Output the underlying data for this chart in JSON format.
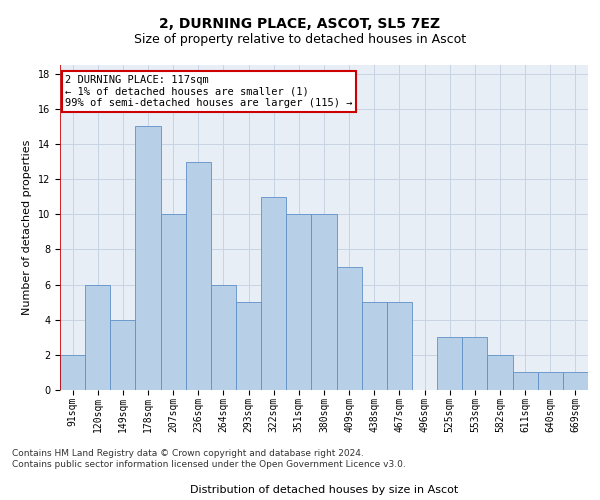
{
  "title": "2, DURNING PLACE, ASCOT, SL5 7EZ",
  "subtitle": "Size of property relative to detached houses in Ascot",
  "xlabel": "Distribution of detached houses by size in Ascot",
  "ylabel": "Number of detached properties",
  "footnote1": "Contains HM Land Registry data © Crown copyright and database right 2024.",
  "footnote2": "Contains public sector information licensed under the Open Government Licence v3.0.",
  "categories": [
    "91sqm",
    "120sqm",
    "149sqm",
    "178sqm",
    "207sqm",
    "236sqm",
    "264sqm",
    "293sqm",
    "322sqm",
    "351sqm",
    "380sqm",
    "409sqm",
    "438sqm",
    "467sqm",
    "496sqm",
    "525sqm",
    "553sqm",
    "582sqm",
    "611sqm",
    "640sqm",
    "669sqm"
  ],
  "values": [
    2,
    6,
    4,
    15,
    10,
    13,
    6,
    5,
    11,
    10,
    10,
    7,
    5,
    5,
    0,
    3,
    3,
    2,
    1,
    1,
    1
  ],
  "bar_color": "#b8cfe8",
  "bar_edge_color": "#6090c8",
  "annotation_line1": "2 DURNING PLACE: 117sqm",
  "annotation_line2": "← 1% of detached houses are smaller (1)",
  "annotation_line3": "99% of semi-detached houses are larger (115) →",
  "annotation_box_color": "#ffffff",
  "annotation_box_edge_color": "#cc0000",
  "vline_color": "#cc0000",
  "ylim": [
    0,
    18.5
  ],
  "yticks": [
    0,
    2,
    4,
    6,
    8,
    10,
    12,
    14,
    16,
    18
  ],
  "grid_color": "#c8d4e4",
  "bg_color": "#e8eef6",
  "title_fontsize": 10,
  "subtitle_fontsize": 9,
  "axis_label_fontsize": 8,
  "tick_fontsize": 7,
  "annotation_fontsize": 7.5,
  "footnote_fontsize": 6.5
}
